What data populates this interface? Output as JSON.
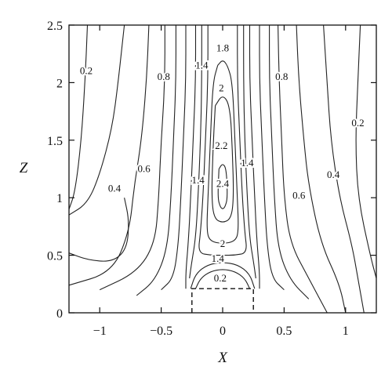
{
  "chart_data": {
    "type": "contour",
    "title": "",
    "xlabel": "X",
    "ylabel": "Z",
    "xlim": [
      -1.25,
      1.25
    ],
    "ylim": [
      0,
      2.5
    ],
    "grid": false,
    "xticks": [
      {
        "value": -1,
        "label": "−1"
      },
      {
        "value": -0.5,
        "label": "−0.5"
      },
      {
        "value": 0,
        "label": "0"
      },
      {
        "value": 0.5,
        "label": "0.5"
      },
      {
        "value": 1,
        "label": "1"
      }
    ],
    "yticks": [
      {
        "value": 0,
        "label": "0"
      },
      {
        "value": 0.5,
        "label": "0.5"
      },
      {
        "value": 1,
        "label": "1"
      },
      {
        "value": 1.5,
        "label": "1.5"
      },
      {
        "value": 2,
        "label": "2"
      },
      {
        "value": 2.5,
        "label": "2.5"
      }
    ],
    "obstacle": {
      "x": [
        -0.25,
        0.25
      ],
      "z": [
        0,
        0.21
      ]
    },
    "contours": [
      {
        "level": 0.2,
        "points": [
          [
            -1.1,
            2.5
          ],
          [
            -1.12,
            2.0
          ],
          [
            -1.15,
            1.5
          ],
          [
            -1.2,
            1.05
          ],
          [
            -1.25,
            0.9
          ]
        ]
      },
      {
        "level": 0.2,
        "points": [
          [
            1.12,
            2.5
          ],
          [
            1.1,
            2.0
          ],
          [
            1.08,
            1.5
          ],
          [
            1.1,
            1.0
          ],
          [
            1.2,
            0.5
          ],
          [
            1.25,
            0.3
          ]
        ]
      },
      {
        "level": 0.4,
        "points": [
          [
            -0.8,
            2.5
          ],
          [
            -0.85,
            2.0
          ],
          [
            -0.9,
            1.6
          ],
          [
            -1.0,
            1.2
          ],
          [
            -1.1,
            0.95
          ],
          [
            -1.25,
            0.85
          ]
        ]
      },
      {
        "level": 0.4,
        "points": [
          [
            -1.25,
            0.52
          ],
          [
            -1.1,
            0.46
          ],
          [
            -0.9,
            0.44
          ],
          [
            -0.78,
            0.55
          ],
          [
            -0.76,
            0.8
          ],
          [
            -0.8,
            1.0
          ]
        ]
      },
      {
        "level": 0.4,
        "points": [
          [
            0.82,
            2.5
          ],
          [
            0.85,
            2.0
          ],
          [
            0.88,
            1.5
          ],
          [
            0.95,
            1.0
          ],
          [
            1.05,
            0.6
          ],
          [
            1.1,
            0.3
          ],
          [
            1.15,
            0.0
          ]
        ]
      },
      {
        "level": 0.6,
        "points": [
          [
            -0.6,
            2.5
          ],
          [
            -0.62,
            2.0
          ],
          [
            -0.66,
            1.5
          ],
          [
            -0.72,
            1.1
          ],
          [
            -0.76,
            0.7
          ],
          [
            -0.9,
            0.35
          ],
          [
            -1.25,
            0.24
          ]
        ]
      },
      {
        "level": 0.6,
        "points": [
          [
            0.6,
            2.5
          ],
          [
            0.62,
            2.0
          ],
          [
            0.66,
            1.5
          ],
          [
            0.7,
            1.1
          ],
          [
            0.8,
            0.6
          ],
          [
            0.95,
            0.25
          ],
          [
            1.0,
            0.0
          ]
        ]
      },
      {
        "level": 0.8,
        "points": [
          [
            -0.47,
            2.5
          ],
          [
            -0.47,
            2.0
          ],
          [
            -0.5,
            1.5
          ],
          [
            -0.52,
            1.0
          ],
          [
            -0.55,
            0.6
          ],
          [
            -0.7,
            0.35
          ],
          [
            -1.0,
            0.2
          ]
        ]
      },
      {
        "level": 0.8,
        "points": [
          [
            0.45,
            2.5
          ],
          [
            0.46,
            2.0
          ],
          [
            0.48,
            1.5
          ],
          [
            0.5,
            1.0
          ],
          [
            0.55,
            0.6
          ],
          [
            0.7,
            0.3
          ],
          [
            0.85,
            0.0
          ]
        ]
      },
      {
        "level": 1.0,
        "points": [
          [
            -0.38,
            2.5
          ],
          [
            -0.38,
            2.0
          ],
          [
            -0.4,
            1.5
          ],
          [
            -0.42,
            1.0
          ],
          [
            -0.45,
            0.55
          ],
          [
            -0.55,
            0.28
          ],
          [
            -0.7,
            0.15
          ]
        ]
      },
      {
        "level": 1.0,
        "points": [
          [
            0.38,
            2.5
          ],
          [
            0.38,
            2.0
          ],
          [
            0.4,
            1.5
          ],
          [
            0.42,
            1.0
          ],
          [
            0.45,
            0.55
          ],
          [
            0.55,
            0.28
          ],
          [
            0.7,
            0.12
          ]
        ]
      },
      {
        "level": 1.2,
        "points": [
          [
            -0.3,
            2.5
          ],
          [
            -0.3,
            2.0
          ],
          [
            -0.32,
            1.5
          ],
          [
            -0.34,
            1.0
          ],
          [
            -0.36,
            0.6
          ],
          [
            -0.4,
            0.3
          ],
          [
            -0.5,
            0.2
          ]
        ]
      },
      {
        "level": 1.2,
        "points": [
          [
            0.3,
            2.5
          ],
          [
            0.3,
            2.0
          ],
          [
            0.32,
            1.5
          ],
          [
            0.34,
            1.0
          ],
          [
            0.36,
            0.6
          ],
          [
            0.4,
            0.3
          ],
          [
            0.5,
            0.2
          ]
        ]
      },
      {
        "level": 1.4,
        "points": [
          [
            -0.22,
            2.5
          ],
          [
            -0.22,
            2.0
          ],
          [
            -0.24,
            1.5
          ],
          [
            -0.26,
            1.0
          ],
          [
            -0.28,
            0.6
          ],
          [
            -0.3,
            0.35
          ],
          [
            -0.3,
            0.21
          ]
        ]
      },
      {
        "level": 1.4,
        "points": [
          [
            0.22,
            2.5
          ],
          [
            0.22,
            2.0
          ],
          [
            0.24,
            1.5
          ],
          [
            0.26,
            1.0
          ],
          [
            0.28,
            0.6
          ],
          [
            0.3,
            0.35
          ],
          [
            0.3,
            0.21
          ]
        ]
      },
      {
        "level": 1.6,
        "points": [
          [
            -0.17,
            2.5
          ],
          [
            -0.17,
            2.0
          ],
          [
            -0.18,
            1.5
          ],
          [
            -0.2,
            1.0
          ],
          [
            -0.22,
            0.65
          ],
          [
            -0.25,
            0.45
          ],
          [
            -0.27,
            0.3
          ]
        ]
      },
      {
        "level": 1.6,
        "points": [
          [
            0.17,
            2.5
          ],
          [
            0.17,
            2.0
          ],
          [
            0.18,
            1.5
          ],
          [
            0.2,
            1.0
          ],
          [
            0.22,
            0.65
          ],
          [
            0.25,
            0.45
          ],
          [
            0.27,
            0.3
          ]
        ]
      },
      {
        "level": 1.8,
        "points": [
          [
            -0.12,
            2.5
          ],
          [
            -0.12,
            2.0
          ],
          [
            -0.14,
            1.5
          ],
          [
            -0.16,
            1.0
          ],
          [
            -0.18,
            0.7
          ],
          [
            -0.2,
            0.52
          ],
          [
            -0.1,
            0.5
          ],
          [
            0.0,
            0.5
          ],
          [
            0.1,
            0.5
          ],
          [
            0.2,
            0.52
          ],
          [
            0.18,
            0.7
          ],
          [
            0.16,
            1.0
          ],
          [
            0.14,
            1.5
          ],
          [
            0.12,
            2.0
          ],
          [
            0.12,
            2.5
          ]
        ]
      },
      {
        "level": 2.0,
        "points": [
          [
            -0.04,
            2.15
          ],
          [
            -0.08,
            2.0
          ],
          [
            -0.1,
            1.5
          ],
          [
            -0.12,
            1.0
          ],
          [
            -0.13,
            0.7
          ],
          [
            -0.1,
            0.62
          ],
          [
            0.0,
            0.6
          ],
          [
            0.1,
            0.62
          ],
          [
            0.13,
            0.7
          ],
          [
            0.12,
            1.0
          ],
          [
            0.1,
            1.5
          ],
          [
            0.08,
            2.0
          ],
          [
            0.04,
            2.15
          ],
          [
            0.0,
            2.2
          ],
          [
            -0.04,
            2.15
          ]
        ]
      },
      {
        "level": 2.2,
        "points": [
          [
            -0.06,
            1.8
          ],
          [
            -0.08,
            1.4
          ],
          [
            -0.09,
            1.0
          ],
          [
            -0.07,
            0.82
          ],
          [
            0.0,
            0.78
          ],
          [
            0.07,
            0.82
          ],
          [
            0.09,
            1.0
          ],
          [
            0.08,
            1.4
          ],
          [
            0.06,
            1.8
          ],
          [
            0.0,
            1.9
          ],
          [
            -0.06,
            1.8
          ]
        ]
      },
      {
        "level": 2.4,
        "points": [
          [
            -0.03,
            1.25
          ],
          [
            -0.04,
            1.0
          ],
          [
            -0.02,
            0.92
          ],
          [
            0.0,
            0.9
          ],
          [
            0.02,
            0.92
          ],
          [
            0.04,
            1.0
          ],
          [
            0.03,
            1.25
          ],
          [
            0.0,
            1.3
          ],
          [
            -0.03,
            1.25
          ]
        ]
      },
      {
        "level": 0.2,
        "points": [
          [
            -0.22,
            0.21
          ],
          [
            -0.18,
            0.3
          ],
          [
            -0.1,
            0.36
          ],
          [
            0.0,
            0.38
          ],
          [
            0.1,
            0.36
          ],
          [
            0.18,
            0.3
          ],
          [
            0.22,
            0.21
          ]
        ]
      },
      {
        "level": 0.6,
        "points": [
          [
            -0.26,
            0.21
          ],
          [
            -0.22,
            0.34
          ],
          [
            -0.12,
            0.42
          ],
          [
            0.0,
            0.44
          ],
          [
            0.12,
            0.42
          ],
          [
            0.22,
            0.34
          ],
          [
            0.26,
            0.21
          ]
        ]
      }
    ],
    "labels": [
      {
        "text": "1.8",
        "x": 0.0,
        "z": 2.3
      },
      {
        "text": "1.4",
        "x": -0.17,
        "z": 2.15
      },
      {
        "text": "0.2",
        "x": -1.11,
        "z": 2.1
      },
      {
        "text": "0.8",
        "x": -0.48,
        "z": 2.05
      },
      {
        "text": "2",
        "x": -0.01,
        "z": 1.95
      },
      {
        "text": "0.8",
        "x": 0.48,
        "z": 2.05
      },
      {
        "text": "0.2",
        "x": 1.1,
        "z": 1.65
      },
      {
        "text": "2.2",
        "x": -0.01,
        "z": 1.45
      },
      {
        "text": "1.4",
        "x": 0.2,
        "z": 1.3
      },
      {
        "text": "0.6",
        "x": -0.64,
        "z": 1.25
      },
      {
        "text": "1.4",
        "x": -0.2,
        "z": 1.15
      },
      {
        "text": "2.4",
        "x": 0.0,
        "z": 1.12
      },
      {
        "text": "0.4",
        "x": 0.9,
        "z": 1.2
      },
      {
        "text": "0.4",
        "x": -0.88,
        "z": 1.08
      },
      {
        "text": "0.6",
        "x": 0.62,
        "z": 1.02
      },
      {
        "text": "2",
        "x": 0.0,
        "z": 0.6
      },
      {
        "text": "1.4",
        "x": -0.04,
        "z": 0.47
      },
      {
        "text": "0.2",
        "x": -0.02,
        "z": 0.3
      }
    ]
  }
}
